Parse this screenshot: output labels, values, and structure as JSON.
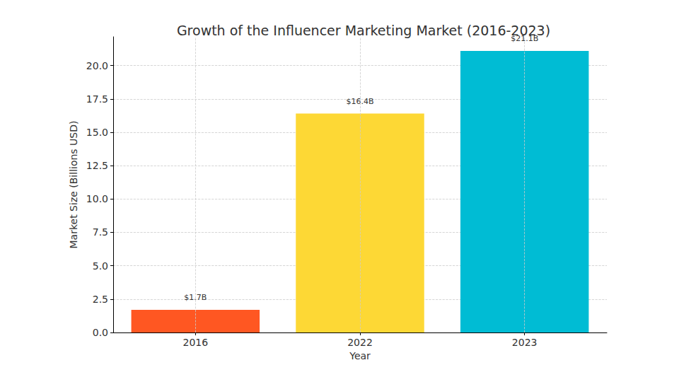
{
  "chart_data": {
    "type": "bar",
    "title": "Growth of the Influencer Marketing Market (2016-2023)",
    "x_label": "Year",
    "y_label": "Market Size (Billions USD)",
    "categories": [
      "2016",
      "2022",
      "2023"
    ],
    "values": [
      1.7,
      16.4,
      21.1
    ],
    "value_labels": [
      "$1.7B",
      "$16.4B",
      "$21.1B"
    ],
    "colors": [
      "#ff5722",
      "#fdd835",
      "#00bcd4"
    ],
    "ylim": [
      0,
      22.155
    ],
    "yticks": [
      {
        "value": 0,
        "label": "0.0"
      },
      2.5,
      {
        "value": 5,
        "label": "5.0"
      },
      7.5,
      {
        "value": 10,
        "label": "10.0"
      },
      12.5,
      {
        "value": 15,
        "label": "15.0"
      },
      17.5,
      {
        "value": 20,
        "label": "20.0"
      }
    ],
    "data_labels": true,
    "grid": true
  }
}
